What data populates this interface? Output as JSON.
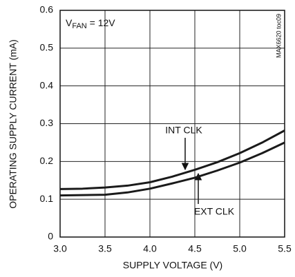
{
  "chart_data": {
    "type": "line",
    "x_label": "SUPPLY VOLTAGE (V)",
    "y_label": "OPERATING SUPPLY CURRENT (mA)",
    "condition": {
      "symbol": "V",
      "subscript": "FAN",
      "rest": " = 12V"
    },
    "figure_id": "MAX6620 toc09",
    "x": [
      3.0,
      3.25,
      3.5,
      3.75,
      4.0,
      4.25,
      4.5,
      4.75,
      5.0,
      5.25,
      5.5
    ],
    "series": [
      {
        "name": "INT CLK",
        "color": "#1a1a1a",
        "values": [
          0.127,
          0.128,
          0.131,
          0.136,
          0.145,
          0.16,
          0.178,
          0.198,
          0.222,
          0.25,
          0.282
        ]
      },
      {
        "name": "EXT CLK",
        "color": "#1a1a1a",
        "values": [
          0.11,
          0.111,
          0.112,
          0.118,
          0.128,
          0.142,
          0.157,
          0.176,
          0.197,
          0.222,
          0.25
        ]
      }
    ],
    "xlim": [
      3.0,
      5.5
    ],
    "xticks": [
      {
        "value": 3,
        "label": "3.0"
      },
      3.5,
      {
        "value": 4,
        "label": "4.0"
      },
      4.5,
      {
        "value": 5,
        "label": "5.0"
      },
      5.5
    ],
    "ylim": [
      0,
      0.6
    ],
    "yticks": [
      0,
      0.1,
      0.2,
      0.3,
      0.4,
      0.5,
      0.6
    ],
    "grid": true
  }
}
